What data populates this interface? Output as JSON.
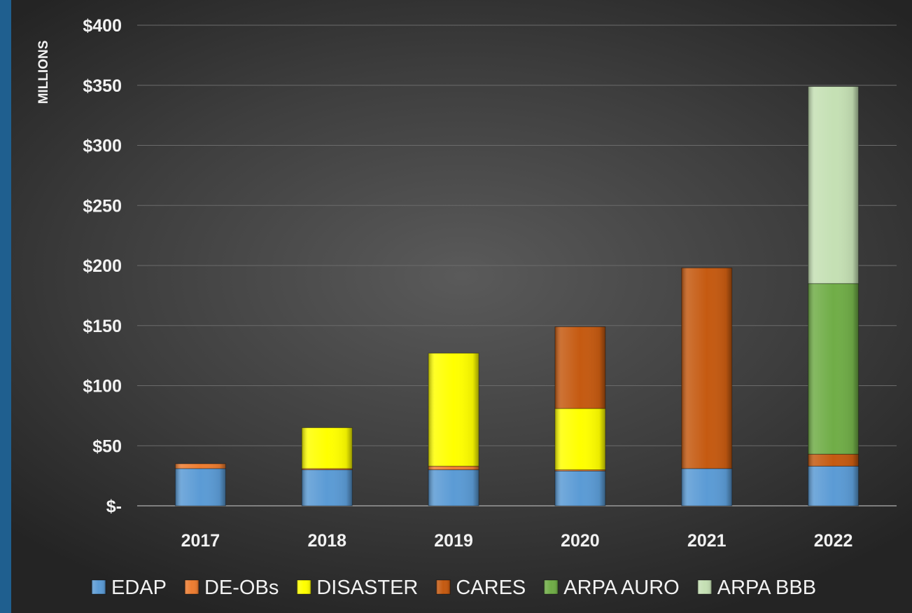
{
  "chart_data": {
    "type": "bar",
    "stacked": true,
    "title": "",
    "xlabel": "",
    "ylabel": "MILLIONS",
    "ylim": [
      0,
      400
    ],
    "yticks": [
      0,
      50,
      100,
      150,
      200,
      250,
      300,
      350,
      400
    ],
    "ytick_labels": [
      "$-",
      "$50",
      "$100",
      "$150",
      "$200",
      "$250",
      "$300",
      "$350",
      "$400"
    ],
    "grid": true,
    "legend": "bottom",
    "categories": [
      "2017",
      "2018",
      "2019",
      "2020",
      "2021",
      "2022"
    ],
    "series": [
      {
        "name": "EDAP",
        "color": "#5b9bd5",
        "values": [
          31,
          30,
          30,
          29,
          31,
          33
        ]
      },
      {
        "name": "DE-OBs",
        "color": "#ed7d31",
        "values": [
          4,
          1,
          3,
          1,
          0,
          0
        ]
      },
      {
        "name": "DISASTER",
        "color": "#ffff00",
        "values": [
          0,
          34,
          94,
          51,
          0,
          0
        ]
      },
      {
        "name": "CARES",
        "color": "#c55a11",
        "values": [
          0,
          0,
          0,
          68,
          167,
          10
        ]
      },
      {
        "name": "ARPA AURO",
        "color": "#70ad47",
        "values": [
          0,
          0,
          0,
          0,
          0,
          142
        ]
      },
      {
        "name": "ARPA BBB",
        "color": "#c5e0b4",
        "values": [
          0,
          0,
          0,
          0,
          0,
          164
        ]
      }
    ]
  }
}
